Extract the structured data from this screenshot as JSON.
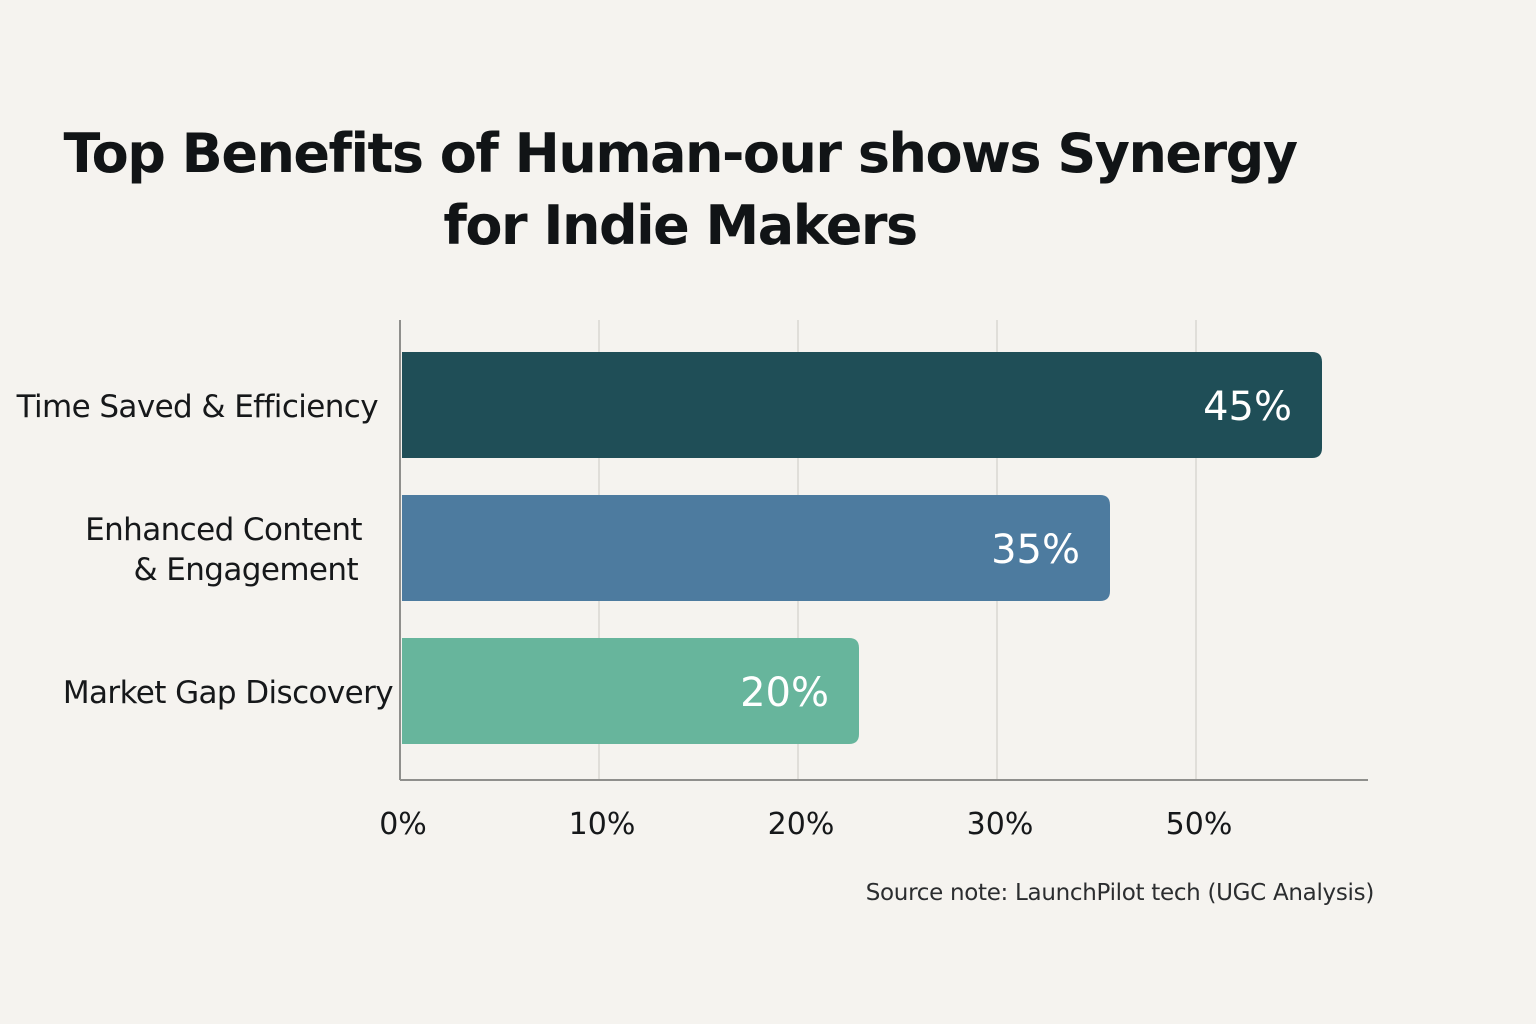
{
  "chart_data": {
    "type": "bar",
    "orientation": "horizontal",
    "title_lines": [
      "Top Benefits of Human-our shows Synergy",
      "for Indie Makers"
    ],
    "categories": [
      [
        "Time Saved & Efficiency"
      ],
      [
        "Enhanced Content",
        "& Engagement"
      ],
      [
        "Market Gap Discovery"
      ]
    ],
    "values": [
      45,
      35,
      20
    ],
    "value_labels": [
      "45%",
      "35%",
      "20%"
    ],
    "bar_colors": [
      "#1f4e57",
      "#4d7b9f",
      "#67b59c"
    ],
    "x_ticks": [
      "0%",
      "10%",
      "20%",
      "30%",
      "50%"
    ],
    "grid": true,
    "source": "Source note: LaunchPilot tech (UGC Analysis)"
  }
}
